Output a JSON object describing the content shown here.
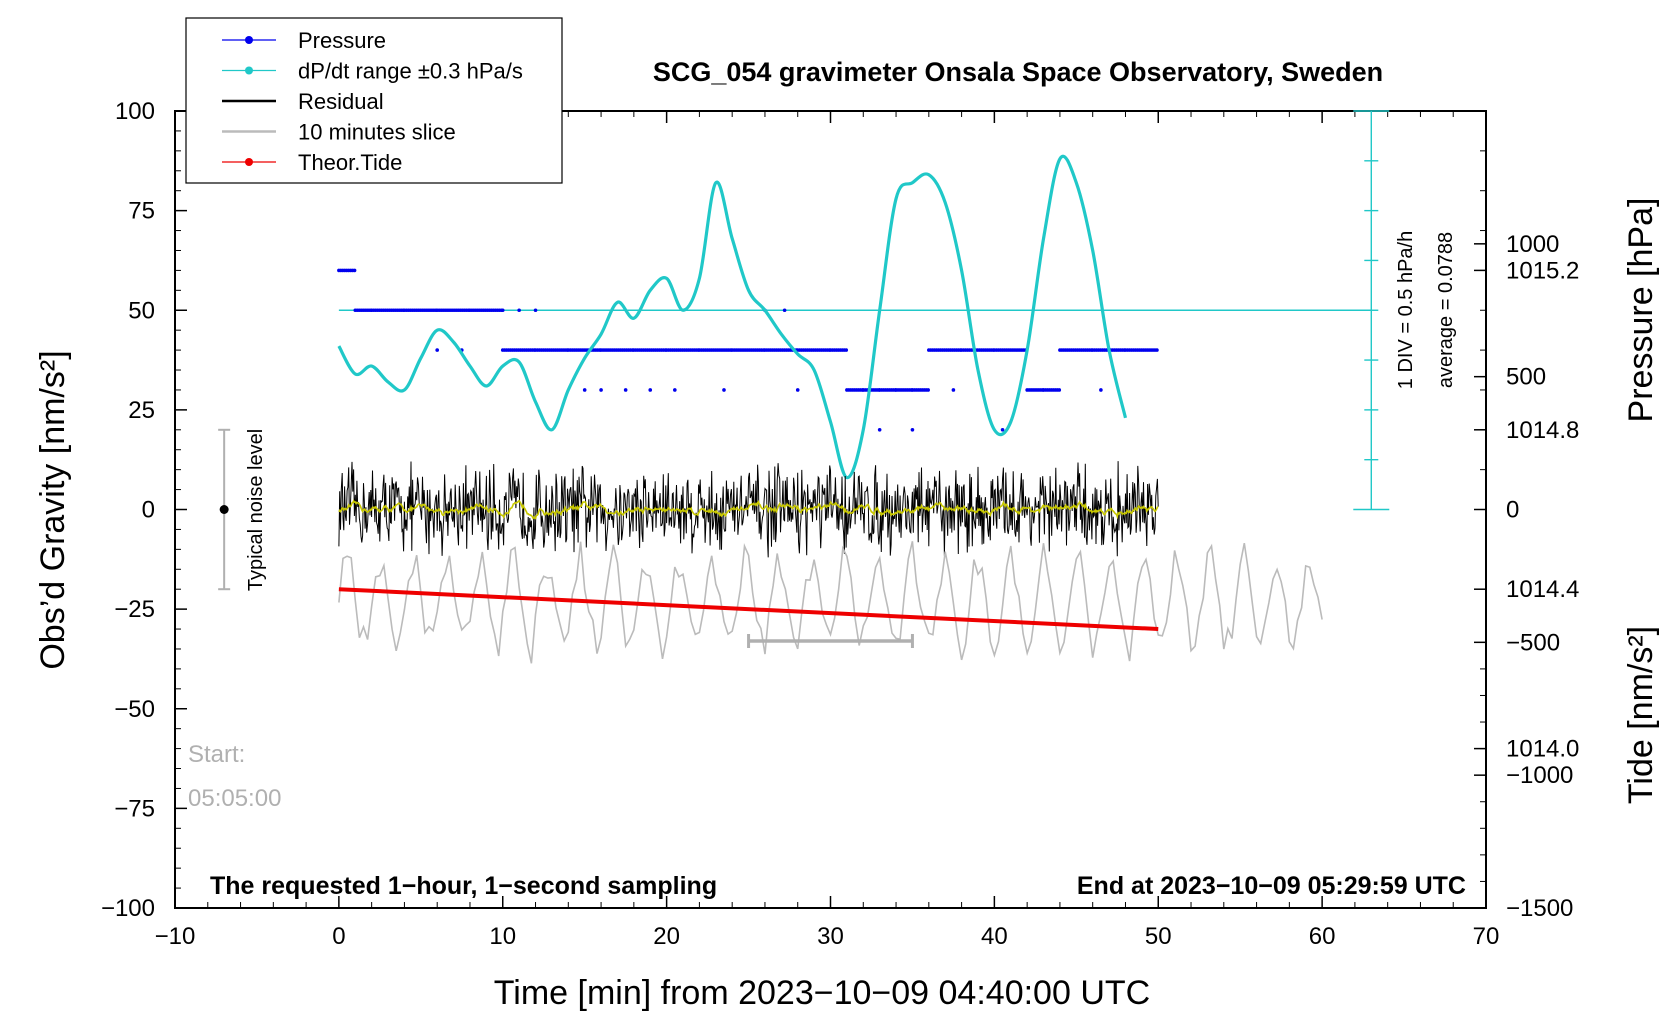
{
  "chart_data": {
    "type": "line",
    "title": "SCG_054 gravimeter Onsala Space Observatory, Sweden",
    "xlabel": "Time [min] from 2023−10−09 04:40:00 UTC",
    "ylabel_left": "Obs’d Gravity [nm/s²]",
    "ylabel_right_top": "Pressure [hPa]",
    "ylabel_right_bottom": "Tide [nm/s²]",
    "xlim": [
      -10,
      70
    ],
    "ylim": [
      -100,
      100
    ],
    "pressure_lim": [
      1013.6,
      1015.6
    ],
    "tide_lim": [
      -1500,
      1500
    ],
    "x_ticks": [
      -10,
      0,
      10,
      20,
      30,
      40,
      50,
      60,
      70
    ],
    "x_tick_labels": [
      "−10",
      "0",
      "10",
      "20",
      "30",
      "40",
      "50",
      "60",
      "70"
    ],
    "y_ticks": [
      -100,
      -75,
      -50,
      -25,
      0,
      25,
      50,
      75,
      100
    ],
    "y_tick_labels": [
      "−100",
      "−75",
      "−50",
      "−25",
      "0",
      "25",
      "50",
      "75",
      "100"
    ],
    "pressure_ticks": [
      1014.0,
      1014.4,
      1014.8,
      1015.2
    ],
    "pressure_tick_labels": [
      "1014.0",
      "1014.4",
      "1014.8",
      "1015.2"
    ],
    "tide_ticks": [
      1000,
      500,
      0,
      -500,
      -1000,
      -1500
    ],
    "tide_tick_labels": [
      "1000",
      "500",
      "0",
      "−500",
      "−1000",
      "−1500"
    ],
    "legend": [
      {
        "label": "Pressure",
        "color": "#0000ee",
        "marker": "dot"
      },
      {
        "label": "dP/dt range ±0.3 hPa/s",
        "color": "#20c8c8",
        "marker": "dot"
      },
      {
        "label": "Residual",
        "color": "#000000",
        "marker": "line"
      },
      {
        "label": "10 minutes slice",
        "color": "#bbbbbb",
        "marker": "line"
      },
      {
        "label": "Theor.Tide",
        "color": "#ee0000",
        "marker": "dot"
      }
    ],
    "series": [
      {
        "name": "dP/dt range ±0.3 hPa/s",
        "color": "#20c8c8",
        "axis": "gravity",
        "x": [
          0,
          1,
          2,
          3,
          4,
          5,
          6,
          7,
          8,
          9,
          10,
          11,
          12,
          13,
          14,
          15,
          16,
          17,
          18,
          19,
          20,
          21,
          22,
          23,
          24,
          25,
          26,
          27,
          28,
          29,
          30,
          31,
          32,
          33,
          34,
          35,
          36,
          37,
          38,
          39,
          40,
          41,
          42,
          43,
          44,
          45,
          46,
          47,
          48
        ],
        "y": [
          41,
          34,
          36,
          32,
          30,
          38,
          45,
          42,
          36,
          31,
          36,
          37,
          27,
          20,
          30,
          38,
          44,
          52,
          48,
          55,
          58,
          50,
          58,
          82,
          68,
          55,
          50,
          44,
          39,
          35,
          22,
          8,
          20,
          50,
          78,
          82,
          84,
          77,
          60,
          35,
          20,
          22,
          40,
          68,
          88,
          82,
          65,
          40,
          23
        ]
      },
      {
        "name": "Pressure",
        "color": "#0000ee",
        "axis": "pressure",
        "x": [
          0,
          1,
          2,
          4,
          6,
          8,
          10,
          12,
          14,
          16,
          18,
          20,
          22,
          24,
          26,
          28,
          30,
          31,
          32,
          33,
          34,
          35,
          36,
          38,
          40,
          42,
          43,
          44,
          46,
          48,
          50
        ],
        "y": [
          1015.2,
          1015.1,
          1015.1,
          1015.1,
          1015.1,
          1015.1,
          1015.0,
          1015.0,
          1015.0,
          1015.0,
          1015.0,
          1015.0,
          1015.0,
          1015.0,
          1015.0,
          1015.0,
          1015.0,
          1014.9,
          1014.9,
          1014.9,
          1014.9,
          1014.9,
          1015.0,
          1015.0,
          1015.0,
          1014.9,
          1014.9,
          1015.0,
          1015.0,
          1015.0,
          1015.0
        ]
      },
      {
        "name": "Residual",
        "color": "#000000",
        "axis": "gravity",
        "x_range": [
          0,
          50
        ],
        "mean": 0,
        "amplitude": 8,
        "smoothed_color": "#c8c800"
      },
      {
        "name": "10 minutes slice",
        "color": "#bbbbbb",
        "axis": "tide",
        "x_range": [
          0,
          60
        ],
        "center": -350,
        "amplitude": 200
      },
      {
        "name": "Theor.Tide",
        "color": "#ee0000",
        "axis": "tide",
        "x": [
          0,
          50
        ],
        "y": [
          -300,
          -450
        ]
      }
    ],
    "noise_level": {
      "label": "Typical noise level",
      "x": -7,
      "center": 0,
      "low": -20,
      "high": 20
    },
    "slice_bar": {
      "x": [
        25,
        35
      ],
      "y": -33
    },
    "pressure_reference": {
      "gravity_value": 50,
      "x": 63,
      "range": [
        0,
        100
      ]
    },
    "annotations": {
      "div_label": "1 DIV = 0.5 hPa/h",
      "average_label": "average = 0.0788",
      "start_label": "Start:",
      "start_time": "05:05:00",
      "bottom_left_note": "The requested 1−hour, 1−second sampling",
      "bottom_right_note": "End at 2023−10−09 05:29:59 UTC"
    }
  }
}
